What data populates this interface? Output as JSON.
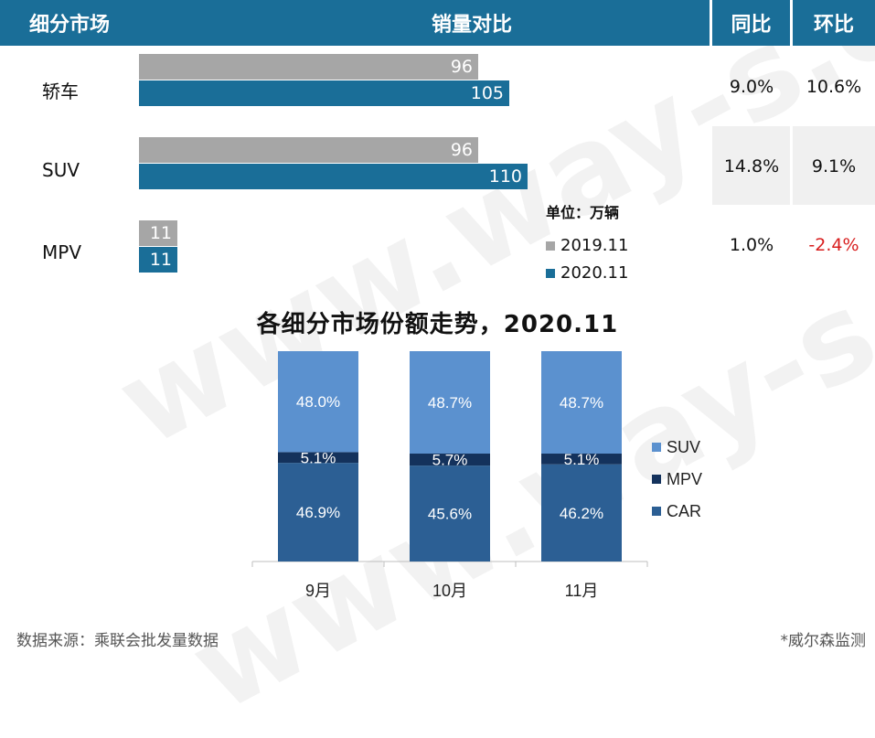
{
  "table": {
    "headers": {
      "segment": "细分市场",
      "sales": "销量对比",
      "yoy": "同比",
      "mom": "环比"
    },
    "unit_label": "单位：万辆",
    "legend": [
      {
        "label": "2019.11",
        "color": "#a6a6a6"
      },
      {
        "label": "2020.11",
        "color": "#1a6e98"
      }
    ],
    "rows": [
      {
        "name": "轿车",
        "v2019": 96,
        "v2020": 105,
        "yoy": "9.0%",
        "mom": "10.6%"
      },
      {
        "name": "SUV",
        "v2019": 96,
        "v2020": 110,
        "yoy": "14.8%",
        "mom": "9.1%"
      },
      {
        "name": "MPV",
        "v2019": 11,
        "v2020": 11,
        "yoy": "1.0%",
        "mom": "-2.4%"
      }
    ]
  },
  "chart_data": [
    {
      "type": "bar",
      "title": "销量对比 (万辆)",
      "categories": [
        "轿车",
        "SUV",
        "MPV"
      ],
      "series": [
        {
          "name": "2019.11",
          "values": [
            96,
            96,
            11
          ]
        },
        {
          "name": "2020.11",
          "values": [
            105,
            110,
            11
          ]
        }
      ]
    },
    {
      "type": "bar",
      "stacked": true,
      "title": "各细分市场份额走势，2020.11",
      "categories": [
        "9月",
        "10月",
        "11月"
      ],
      "series": [
        {
          "name": "CAR",
          "color": "#2c5f94",
          "values": [
            46.9,
            45.6,
            46.2
          ],
          "labels": [
            "46.9%",
            "45.6%",
            "46.2%"
          ]
        },
        {
          "name": "MPV",
          "color": "#14325c",
          "values": [
            5.1,
            5.7,
            5.1
          ],
          "labels": [
            "5.1%",
            "5.7%",
            "5.1%"
          ]
        },
        {
          "name": "SUV",
          "color": "#5b91cf",
          "values": [
            48.0,
            48.7,
            48.7
          ],
          "labels": [
            "48.0%",
            "48.7%",
            "48.7%"
          ]
        }
      ],
      "legend_order": [
        "SUV",
        "MPV",
        "CAR"
      ],
      "ylim": [
        0,
        100
      ]
    }
  ],
  "footer": {
    "source": "数据来源：乘联会批发量数据",
    "credit": "*威尔森监测"
  },
  "watermark": "www.way-s.cn"
}
